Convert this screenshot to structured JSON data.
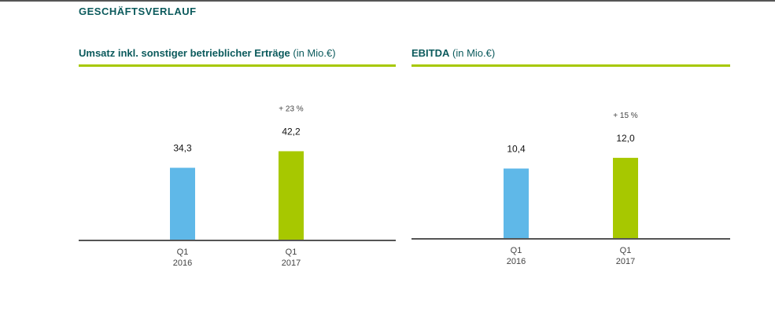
{
  "header": {
    "section_title": "GESCHÄFTSVERLAUF"
  },
  "colors": {
    "previous_year": "#5fb8e8",
    "current_year": "#a7c800",
    "title": "#0b5a5c",
    "axis": "#555555"
  },
  "charts": [
    {
      "title_bold": "Umsatz inkl. sonstiger betrieblicher Erträge",
      "title_unit": "(in Mio.€)"
    },
    {
      "title_bold": "EBITDA",
      "title_unit": "(in Mio.€)"
    }
  ],
  "chart_data": [
    {
      "type": "bar",
      "title": "Umsatz inkl. sonstiger betrieblicher Erträge (in Mio.€)",
      "categories": [
        "Q1 2016",
        "Q1 2017"
      ],
      "category_lines": [
        [
          "Q1",
          "2016"
        ],
        [
          "Q1",
          "2017"
        ]
      ],
      "values": [
        34.3,
        42.2
      ],
      "value_labels": [
        "34,3",
        "42,2"
      ],
      "change_label": "+ 23 %",
      "ylim": [
        0,
        75
      ],
      "grid": false
    },
    {
      "type": "bar",
      "title": "EBITDA (in Mio.€)",
      "categories": [
        "Q1 2016",
        "Q1 2017"
      ],
      "category_lines": [
        [
          "Q1",
          "2016"
        ],
        [
          "Q1",
          "2017"
        ]
      ],
      "values": [
        10.4,
        12.0
      ],
      "value_labels": [
        "10,4",
        "12,0"
      ],
      "change_label": "+ 15 %",
      "ylim": [
        0,
        23.5
      ],
      "grid": false
    }
  ]
}
